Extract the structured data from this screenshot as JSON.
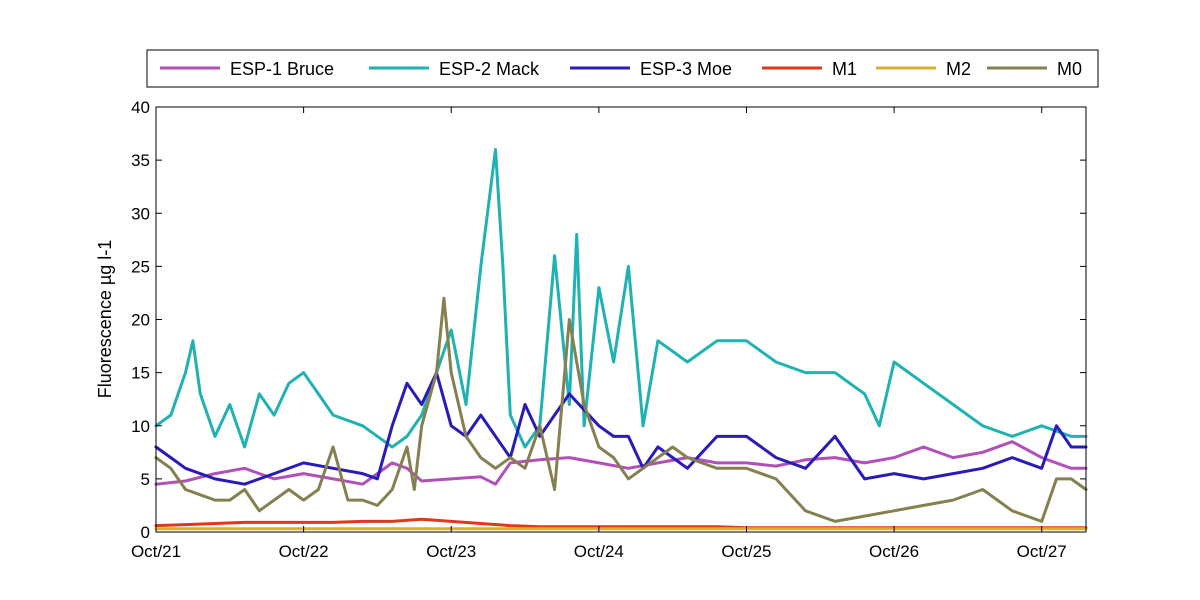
{
  "chart_data": {
    "type": "line",
    "title": "",
    "xlabel": "",
    "ylabel": "Fluorescence µg l-1",
    "ylim": [
      0,
      40
    ],
    "yticks": [
      0,
      5,
      10,
      15,
      20,
      25,
      30,
      35,
      40
    ],
    "xlim": [
      0,
      6.3
    ],
    "xticks": [
      {
        "v": 0,
        "label": "Oct/21"
      },
      {
        "v": 1,
        "label": "Oct/22"
      },
      {
        "v": 2,
        "label": "Oct/23"
      },
      {
        "v": 3,
        "label": "Oct/24"
      },
      {
        "v": 4,
        "label": "Oct/25"
      },
      {
        "v": 5,
        "label": "Oct/26"
      },
      {
        "v": 6,
        "label": "Oct/27"
      }
    ],
    "grid": false,
    "legend_position": "top",
    "x_unit_note": "x values are days from Oct/21",
    "series": [
      {
        "name": "ESP-1 Bruce",
        "color": "#b050b8",
        "x": [
          0,
          0.2,
          0.4,
          0.6,
          0.8,
          1.0,
          1.2,
          1.4,
          1.5,
          1.6,
          1.7,
          1.8,
          2.0,
          2.2,
          2.3,
          2.4,
          2.6,
          2.8,
          3.0,
          3.2,
          3.4,
          3.6,
          3.8,
          4.0,
          4.2,
          4.4,
          4.6,
          4.8,
          5.0,
          5.2,
          5.4,
          5.6,
          5.8,
          6.0,
          6.2,
          6.3
        ],
        "y": [
          4.5,
          4.8,
          5.5,
          6.0,
          5.0,
          5.5,
          5.0,
          4.5,
          5.5,
          6.5,
          6.0,
          4.8,
          5.0,
          5.2,
          4.5,
          6.5,
          6.8,
          7.0,
          6.5,
          6.0,
          6.5,
          7.0,
          6.5,
          6.5,
          6.2,
          6.8,
          7.0,
          6.5,
          7.0,
          8.0,
          7.0,
          7.5,
          8.5,
          7.0,
          6.0,
          6.0
        ]
      },
      {
        "name": "ESP-2 Mack",
        "color": "#20b2b2",
        "x": [
          0,
          0.1,
          0.2,
          0.25,
          0.3,
          0.4,
          0.5,
          0.6,
          0.7,
          0.8,
          0.9,
          1.0,
          1.1,
          1.2,
          1.4,
          1.6,
          1.7,
          1.8,
          1.9,
          2.0,
          2.1,
          2.2,
          2.3,
          2.35,
          2.4,
          2.5,
          2.6,
          2.7,
          2.8,
          2.85,
          2.9,
          3.0,
          3.1,
          3.2,
          3.3,
          3.4,
          3.5,
          3.6,
          3.8,
          4.0,
          4.2,
          4.4,
          4.6,
          4.7,
          4.8,
          4.9,
          5.0,
          5.2,
          5.4,
          5.6,
          5.8,
          6.0,
          6.2,
          6.3
        ],
        "y": [
          10,
          11,
          15,
          18,
          13,
          9,
          12,
          8,
          13,
          11,
          14,
          15,
          13,
          11,
          10,
          8,
          9,
          11,
          15,
          19,
          12,
          25,
          36,
          25,
          11,
          8,
          10,
          26,
          12,
          28,
          10,
          23,
          16,
          25,
          10,
          18,
          17,
          16,
          18,
          18,
          16,
          15,
          15,
          14,
          13,
          10,
          16,
          14,
          12,
          10,
          9,
          10,
          9,
          9
        ]
      },
      {
        "name": "ESP-3 Moe",
        "color": "#2a1bb8",
        "x": [
          0,
          0.1,
          0.2,
          0.4,
          0.6,
          0.8,
          1.0,
          1.2,
          1.4,
          1.5,
          1.6,
          1.7,
          1.8,
          1.9,
          2.0,
          2.1,
          2.2,
          2.4,
          2.5,
          2.6,
          2.8,
          3.0,
          3.1,
          3.2,
          3.3,
          3.4,
          3.5,
          3.6,
          3.8,
          4.0,
          4.2,
          4.4,
          4.6,
          4.8,
          5.0,
          5.2,
          5.4,
          5.6,
          5.8,
          6.0,
          6.1,
          6.2,
          6.3
        ],
        "y": [
          8,
          7,
          6,
          5,
          4.5,
          5.5,
          6.5,
          6,
          5.5,
          5,
          10,
          14,
          12,
          15,
          10,
          9,
          11,
          7,
          12,
          9,
          13,
          10,
          9,
          9,
          6,
          8,
          7,
          6,
          9,
          9,
          7,
          6,
          9,
          5,
          5.5,
          5,
          5.5,
          6,
          7,
          6,
          10,
          8,
          8
        ]
      },
      {
        "name": "M1",
        "color": "#e03818",
        "x": [
          0,
          0.2,
          0.4,
          0.6,
          0.8,
          1.0,
          1.2,
          1.4,
          1.6,
          1.8,
          2.0,
          2.2,
          2.4,
          2.6,
          2.8,
          3.0,
          3.2,
          3.4,
          3.6,
          3.8,
          4.0,
          4.2,
          4.4,
          4.6,
          4.8,
          5.0,
          5.2,
          5.4,
          5.6,
          5.8,
          6.0,
          6.2,
          6.3
        ],
        "y": [
          0.6,
          0.7,
          0.8,
          0.9,
          0.9,
          0.9,
          0.9,
          1.0,
          1.0,
          1.2,
          1.0,
          0.8,
          0.6,
          0.5,
          0.5,
          0.5,
          0.5,
          0.5,
          0.5,
          0.5,
          0.4,
          0.4,
          0.4,
          0.4,
          0.4,
          0.4,
          0.4,
          0.4,
          0.4,
          0.4,
          0.4,
          0.4,
          0.4
        ]
      },
      {
        "name": "M2",
        "color": "#d8b030",
        "x": [
          0,
          0.5,
          1.0,
          1.5,
          2.0,
          2.5,
          3.0,
          3.5,
          4.0,
          4.5,
          5.0,
          5.5,
          6.0,
          6.3
        ],
        "y": [
          0.3,
          0.3,
          0.3,
          0.3,
          0.3,
          0.3,
          0.3,
          0.3,
          0.3,
          0.3,
          0.3,
          0.3,
          0.3,
          0.3
        ]
      },
      {
        "name": "M0",
        "color": "#858050",
        "x": [
          0,
          0.1,
          0.2,
          0.3,
          0.4,
          0.5,
          0.6,
          0.7,
          0.8,
          0.9,
          1.0,
          1.1,
          1.2,
          1.3,
          1.4,
          1.5,
          1.6,
          1.7,
          1.75,
          1.8,
          1.9,
          1.95,
          2.0,
          2.1,
          2.2,
          2.3,
          2.4,
          2.5,
          2.6,
          2.7,
          2.8,
          2.9,
          3.0,
          3.1,
          3.2,
          3.3,
          3.4,
          3.5,
          3.6,
          3.8,
          4.0,
          4.2,
          4.4,
          4.6,
          4.8,
          5.0,
          5.2,
          5.4,
          5.6,
          5.8,
          6.0,
          6.1,
          6.2,
          6.3
        ],
        "y": [
          7,
          6,
          4,
          3.5,
          3,
          3,
          4,
          2,
          3,
          4,
          3,
          4,
          8,
          3,
          3,
          2.5,
          4,
          8,
          4,
          10,
          15,
          22,
          15,
          9,
          7,
          6,
          7,
          6,
          10,
          4,
          20,
          12,
          8,
          7,
          5,
          6,
          7,
          8,
          7,
          6,
          6,
          5,
          2,
          1,
          1.5,
          2,
          2.5,
          3,
          4,
          2,
          1,
          5,
          5,
          4
        ]
      }
    ]
  }
}
